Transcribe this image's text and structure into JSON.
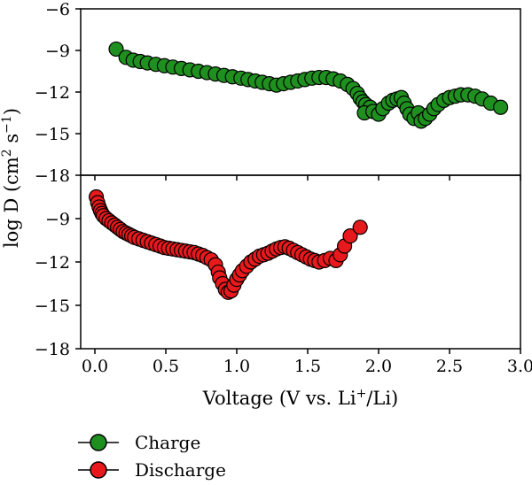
{
  "chart_data": {
    "type": "scatter",
    "x": {
      "label_prefix": "Voltage (V vs. Li",
      "label_sup": "+",
      "label_suffix": "/Li)",
      "range": [
        -0.1,
        3.0
      ],
      "ticks": [
        0.0,
        0.5,
        1.0,
        1.5,
        2.0,
        2.5,
        3.0
      ],
      "tick_labels": [
        "0.0",
        "0.5",
        "1.0",
        "1.5",
        "2.0",
        "2.5",
        "3.0"
      ]
    },
    "y": {
      "label_prefix": "log D (cm",
      "label_sup1": "2",
      "label_mid": " s",
      "label_sup2": "−1",
      "label_suffix": ")"
    },
    "panels": [
      {
        "id": "top",
        "ylim": [
          -18,
          -6
        ],
        "ticks": [
          -6,
          -9,
          -12,
          -15,
          -18
        ],
        "tick_labels": [
          "−6",
          "−9",
          "−12",
          "−15",
          "−18"
        ],
        "series": [
          "charge"
        ]
      },
      {
        "id": "bottom",
        "ylim": [
          -18,
          -6
        ],
        "ticks": [
          -9,
          -12,
          -15,
          -18
        ],
        "tick_labels": [
          "−9",
          "−12",
          "−15",
          "−18"
        ],
        "series": [
          "discharge"
        ]
      }
    ],
    "legend": {
      "placement": "bottom-left",
      "entries": [
        {
          "series": "charge",
          "label": "Charge"
        },
        {
          "series": "discharge",
          "label": "Discharge"
        }
      ]
    },
    "series": [
      {
        "id": "charge",
        "name": "Charge",
        "color": "#1f8f1f",
        "points": [
          [
            0.15,
            -8.9
          ],
          [
            0.22,
            -9.5
          ],
          [
            0.27,
            -9.7
          ],
          [
            0.32,
            -9.8
          ],
          [
            0.37,
            -9.9
          ],
          [
            0.43,
            -10.0
          ],
          [
            0.49,
            -10.1
          ],
          [
            0.55,
            -10.2
          ],
          [
            0.61,
            -10.3
          ],
          [
            0.67,
            -10.4
          ],
          [
            0.73,
            -10.5
          ],
          [
            0.79,
            -10.6
          ],
          [
            0.85,
            -10.7
          ],
          [
            0.91,
            -10.8
          ],
          [
            0.97,
            -10.9
          ],
          [
            1.03,
            -11.0
          ],
          [
            1.08,
            -11.1
          ],
          [
            1.13,
            -11.2
          ],
          [
            1.18,
            -11.3
          ],
          [
            1.23,
            -11.4
          ],
          [
            1.28,
            -11.5
          ],
          [
            1.33,
            -11.4
          ],
          [
            1.38,
            -11.3
          ],
          [
            1.43,
            -11.2
          ],
          [
            1.48,
            -11.1
          ],
          [
            1.53,
            -11.0
          ],
          [
            1.58,
            -10.95
          ],
          [
            1.63,
            -10.95
          ],
          [
            1.68,
            -11.05
          ],
          [
            1.73,
            -11.2
          ],
          [
            1.78,
            -11.45
          ],
          [
            1.82,
            -11.75
          ],
          [
            1.85,
            -12.1
          ],
          [
            1.87,
            -12.45
          ],
          [
            1.89,
            -12.7
          ],
          [
            1.91,
            -12.9
          ],
          [
            1.94,
            -13.1
          ],
          [
            1.9,
            -13.5
          ],
          [
            1.96,
            -13.4
          ],
          [
            2.0,
            -13.6
          ],
          [
            2.03,
            -13.2
          ],
          [
            2.07,
            -12.8
          ],
          [
            2.1,
            -12.6
          ],
          [
            2.13,
            -12.5
          ],
          [
            2.16,
            -12.4
          ],
          [
            2.18,
            -12.8
          ],
          [
            2.2,
            -13.2
          ],
          [
            2.22,
            -13.6
          ],
          [
            2.25,
            -13.9
          ],
          [
            2.28,
            -13.5
          ],
          [
            2.3,
            -14.1
          ],
          [
            2.33,
            -13.9
          ],
          [
            2.36,
            -13.6
          ],
          [
            2.39,
            -13.2
          ],
          [
            2.42,
            -12.9
          ],
          [
            2.46,
            -12.6
          ],
          [
            2.5,
            -12.4
          ],
          [
            2.54,
            -12.3
          ],
          [
            2.58,
            -12.2
          ],
          [
            2.63,
            -12.2
          ],
          [
            2.68,
            -12.3
          ],
          [
            2.73,
            -12.5
          ],
          [
            2.79,
            -12.8
          ],
          [
            2.86,
            -13.1
          ]
        ]
      },
      {
        "id": "discharge",
        "name": "Discharge",
        "color": "#e8191c",
        "points": [
          [
            0.01,
            -7.5
          ],
          [
            0.02,
            -7.9
          ],
          [
            0.03,
            -8.2
          ],
          [
            0.04,
            -8.45
          ],
          [
            0.05,
            -8.65
          ],
          [
            0.06,
            -8.8
          ],
          [
            0.08,
            -9.0
          ],
          [
            0.1,
            -9.15
          ],
          [
            0.12,
            -9.3
          ],
          [
            0.14,
            -9.45
          ],
          [
            0.16,
            -9.6
          ],
          [
            0.18,
            -9.75
          ],
          [
            0.2,
            -9.9
          ],
          [
            0.22,
            -10.0
          ],
          [
            0.24,
            -10.1
          ],
          [
            0.26,
            -10.2
          ],
          [
            0.28,
            -10.3
          ],
          [
            0.31,
            -10.4
          ],
          [
            0.34,
            -10.5
          ],
          [
            0.37,
            -10.6
          ],
          [
            0.4,
            -10.7
          ],
          [
            0.43,
            -10.8
          ],
          [
            0.46,
            -10.9
          ],
          [
            0.49,
            -11.0
          ],
          [
            0.52,
            -11.05
          ],
          [
            0.55,
            -11.1
          ],
          [
            0.58,
            -11.15
          ],
          [
            0.61,
            -11.2
          ],
          [
            0.64,
            -11.25
          ],
          [
            0.67,
            -11.3
          ],
          [
            0.7,
            -11.35
          ],
          [
            0.73,
            -11.45
          ],
          [
            0.76,
            -11.55
          ],
          [
            0.79,
            -11.7
          ],
          [
            0.82,
            -11.85
          ],
          [
            0.85,
            -12.2
          ],
          [
            0.87,
            -12.7
          ],
          [
            0.88,
            -13.1
          ],
          [
            0.9,
            -13.5
          ],
          [
            0.92,
            -13.9
          ],
          [
            0.94,
            -14.1
          ],
          [
            0.96,
            -14.0
          ],
          [
            0.98,
            -13.6
          ],
          [
            1.0,
            -13.2
          ],
          [
            1.02,
            -12.9
          ],
          [
            1.04,
            -12.6
          ],
          [
            1.07,
            -12.3
          ],
          [
            1.1,
            -12.0
          ],
          [
            1.13,
            -11.8
          ],
          [
            1.16,
            -11.6
          ],
          [
            1.19,
            -11.5
          ],
          [
            1.22,
            -11.4
          ],
          [
            1.25,
            -11.25
          ],
          [
            1.28,
            -11.1
          ],
          [
            1.31,
            -11.0
          ],
          [
            1.34,
            -10.95
          ],
          [
            1.37,
            -11.05
          ],
          [
            1.4,
            -11.2
          ],
          [
            1.43,
            -11.35
          ],
          [
            1.46,
            -11.5
          ],
          [
            1.49,
            -11.65
          ],
          [
            1.52,
            -11.8
          ],
          [
            1.55,
            -11.9
          ],
          [
            1.58,
            -12.0
          ],
          [
            1.62,
            -11.9
          ],
          [
            1.66,
            -11.75
          ],
          [
            1.7,
            -11.9
          ],
          [
            1.73,
            -11.5
          ],
          [
            1.76,
            -10.9
          ],
          [
            1.8,
            -10.2
          ],
          [
            1.87,
            -9.6
          ]
        ]
      }
    ]
  }
}
